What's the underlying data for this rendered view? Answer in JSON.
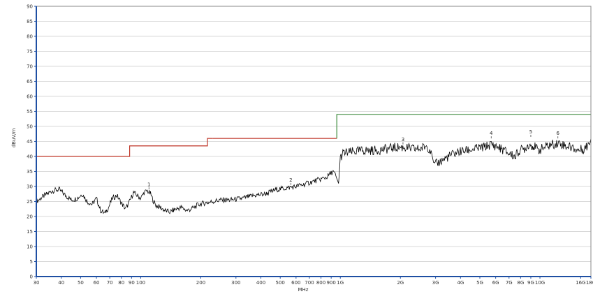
{
  "chart_data": {
    "type": "line",
    "title": "",
    "xlabel": "MHz",
    "ylabel": "dBuV/m",
    "x_scale": "log",
    "xlim": [
      30,
      18000
    ],
    "ylim": [
      0,
      90
    ],
    "grid": true,
    "y_ticks": [
      0,
      5,
      10,
      15,
      20,
      25,
      30,
      35,
      40,
      45,
      50,
      55,
      60,
      65,
      70,
      75,
      80,
      85,
      90
    ],
    "y_tick_labels": [
      "0",
      "5",
      "10",
      "15",
      "20",
      "25",
      "30",
      "35",
      "40",
      "45",
      "50",
      "55",
      "60",
      "65",
      "70",
      "75",
      "80",
      "85",
      "90"
    ],
    "x_ticks": [
      30,
      40,
      50,
      60,
      70,
      80,
      90,
      100,
      200,
      300,
      400,
      500,
      600,
      700,
      800,
      900,
      1000,
      2000,
      3000,
      4000,
      5000,
      6000,
      7000,
      8000,
      9000,
      10000,
      16000,
      18000
    ],
    "x_tick_labels": [
      "30",
      "40",
      "50",
      "60",
      "70",
      "80",
      "90",
      "100",
      "200",
      "300",
      "400",
      "500",
      "600",
      "700",
      "800",
      "900",
      "1G",
      "2G",
      "3G",
      "4G",
      "5G",
      "6G",
      "7G",
      "8G",
      "9G",
      "10G",
      "16G",
      "18G"
    ],
    "limits": [
      {
        "color": "#c0392b",
        "points": [
          [
            30,
            40
          ],
          [
            88,
            40
          ],
          [
            88,
            43.5
          ],
          [
            216,
            43.5
          ],
          [
            216,
            46
          ],
          [
            230,
            46
          ]
        ]
      },
      {
        "color": "#c0392b",
        "points": [
          [
            230,
            46
          ],
          [
            960,
            46
          ]
        ]
      },
      {
        "color": "#3c8a3c",
        "points": [
          [
            960,
            46
          ],
          [
            960,
            54
          ],
          [
            18000,
            54
          ]
        ]
      }
    ],
    "series": [
      {
        "color": "#000000",
        "points": [
          [
            30,
            25
          ],
          [
            33,
            27
          ],
          [
            36,
            28.5
          ],
          [
            39,
            29
          ],
          [
            42,
            27
          ],
          [
            45,
            25.5
          ],
          [
            48,
            26
          ],
          [
            51,
            27.5
          ],
          [
            54,
            25
          ],
          [
            57,
            24
          ],
          [
            60,
            26
          ],
          [
            63,
            22
          ],
          [
            66,
            21
          ],
          [
            69,
            23
          ],
          [
            72,
            26
          ],
          [
            76,
            27
          ],
          [
            80,
            24.5
          ],
          [
            84,
            22.5
          ],
          [
            88,
            25
          ],
          [
            92,
            28
          ],
          [
            96,
            27
          ],
          [
            100,
            26
          ],
          [
            104,
            28
          ],
          [
            108,
            28.5
          ],
          [
            112,
            27.5
          ],
          [
            116,
            25
          ],
          [
            120,
            23.5
          ],
          [
            126,
            23
          ],
          [
            132,
            22
          ],
          [
            140,
            21.5
          ],
          [
            150,
            22.5
          ],
          [
            160,
            23
          ],
          [
            170,
            22
          ],
          [
            180,
            22.5
          ],
          [
            195,
            24
          ],
          [
            210,
            24.5
          ],
          [
            230,
            25
          ],
          [
            250,
            25.5
          ],
          [
            280,
            25.5
          ],
          [
            320,
            26
          ],
          [
            370,
            27
          ],
          [
            420,
            27.5
          ],
          [
            480,
            29
          ],
          [
            540,
            29.5
          ],
          [
            600,
            30
          ],
          [
            680,
            31
          ],
          [
            760,
            32
          ],
          [
            850,
            33
          ],
          [
            920,
            35
          ],
          [
            950,
            33.5
          ],
          [
            980,
            31
          ],
          [
            1000,
            39.5
          ],
          [
            1030,
            41
          ],
          [
            1150,
            41.5
          ],
          [
            1300,
            42
          ],
          [
            1500,
            42
          ],
          [
            1700,
            42.5
          ],
          [
            1900,
            43
          ],
          [
            2100,
            43
          ],
          [
            2300,
            42.5
          ],
          [
            2500,
            42.5
          ],
          [
            2700,
            43.5
          ],
          [
            2850,
            42
          ],
          [
            2950,
            37
          ],
          [
            3100,
            38
          ],
          [
            3300,
            39
          ],
          [
            3600,
            40.5
          ],
          [
            3900,
            41.5
          ],
          [
            4300,
            42
          ],
          [
            4700,
            42.5
          ],
          [
            5200,
            43
          ],
          [
            5700,
            44
          ],
          [
            6200,
            43
          ],
          [
            6600,
            42
          ],
          [
            7000,
            41
          ],
          [
            7500,
            40
          ],
          [
            7900,
            42
          ],
          [
            8300,
            42.5
          ],
          [
            8800,
            44
          ],
          [
            9300,
            43.5
          ],
          [
            9800,
            42
          ],
          [
            10500,
            43
          ],
          [
            11500,
            44
          ],
          [
            12500,
            44.5
          ],
          [
            13500,
            43.5
          ],
          [
            14500,
            43
          ],
          [
            15500,
            42
          ],
          [
            16500,
            42.5
          ],
          [
            17300,
            43.5
          ],
          [
            18000,
            46
          ]
        ]
      }
    ],
    "markers": [
      {
        "label": "1",
        "x": 110,
        "y": 29
      },
      {
        "label": "2",
        "x": 565,
        "y": 30.5
      },
      {
        "label": "3",
        "x": 2060,
        "y": 44
      },
      {
        "label": "4",
        "x": 5700,
        "y": 46
      },
      {
        "label": "5",
        "x": 9000,
        "y": 46.5
      },
      {
        "label": "6",
        "x": 12300,
        "y": 46
      }
    ]
  }
}
